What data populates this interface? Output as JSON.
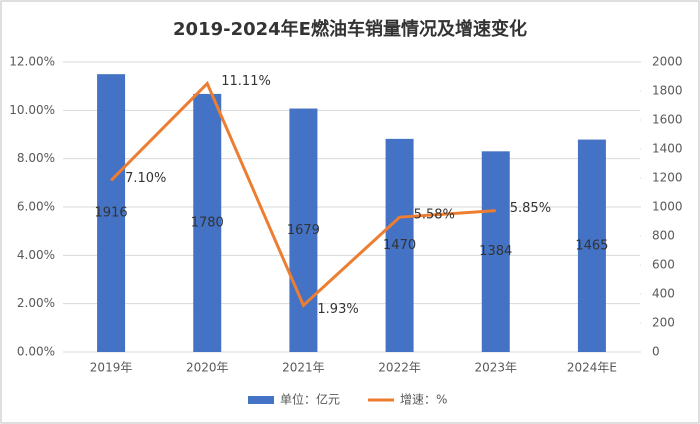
{
  "chart_data": {
    "type": "bar_line",
    "title": "2019-2024年E燃油车销量情况及增速变化",
    "categories": [
      "2019年",
      "2020年",
      "2021年",
      "2022年",
      "2023年",
      "2024年E"
    ],
    "series": [
      {
        "name": "单位：亿元",
        "type": "bar",
        "axis": "y2",
        "color": "#4472c4",
        "values": [
          1916,
          1780,
          1679,
          1470,
          1384,
          1465
        ]
      },
      {
        "name": "增速：%",
        "type": "line",
        "axis": "y",
        "color": "#ed7d31",
        "values": [
          7.1,
          11.11,
          1.93,
          5.58,
          5.85,
          null
        ],
        "value_labels": [
          "7.10%",
          "11.11%",
          "1.93%",
          "5.58%",
          "5.85%",
          null
        ]
      }
    ],
    "ylim": [
      0,
      12
    ],
    "yticks": [
      {
        "value": 0,
        "label": "0.00%"
      },
      {
        "value": 2,
        "label": "2.00%"
      },
      {
        "value": 4,
        "label": "4.00%"
      },
      {
        "value": 6,
        "label": "6.00%"
      },
      {
        "value": 8,
        "label": "8.00%"
      },
      {
        "value": 10,
        "label": "10.00%"
      },
      {
        "value": 12,
        "label": "12.00%"
      }
    ],
    "y2lim": [
      0,
      2000
    ],
    "y2ticks": [
      0,
      200,
      400,
      600,
      800,
      1000,
      1200,
      1400,
      1600,
      1800,
      2000
    ],
    "legend": "bottom"
  }
}
